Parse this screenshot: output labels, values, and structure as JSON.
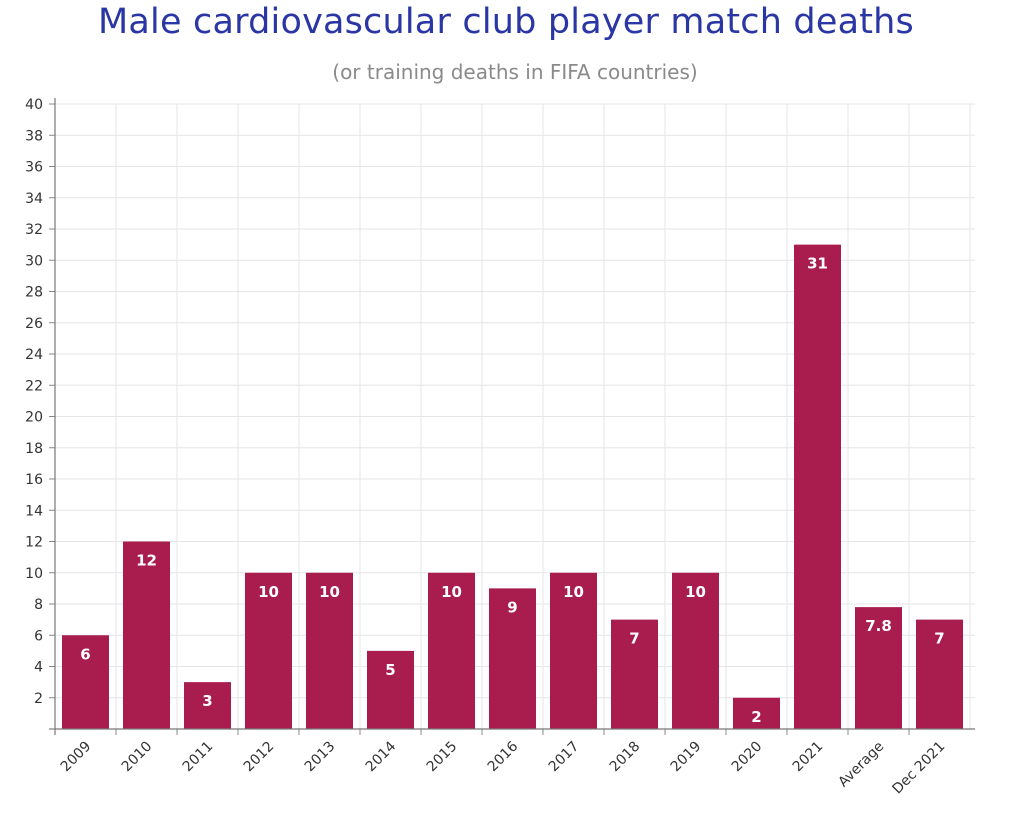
{
  "chart_data": {
    "type": "bar",
    "title": "Male cardiovascular club player match deaths",
    "subtitle": "(or training deaths in FIFA countries)",
    "categories": [
      "2009",
      "2010",
      "2011",
      "2012",
      "2013",
      "2014",
      "2015",
      "2016",
      "2017",
      "2018",
      "2019",
      "2020",
      "2021",
      "Average",
      "Dec 2021"
    ],
    "values": [
      6,
      12,
      3,
      10,
      10,
      5,
      10,
      9,
      10,
      7,
      10,
      2,
      31,
      7.8,
      7
    ],
    "data_labels": [
      "6",
      "12",
      "3",
      "10",
      "10",
      "5",
      "10",
      "9",
      "10",
      "7",
      "10",
      "2",
      "31",
      "7.8",
      "7"
    ],
    "ylim": [
      0,
      40
    ],
    "yticks": [
      2,
      4,
      6,
      8,
      10,
      12,
      14,
      16,
      18,
      20,
      22,
      24,
      26,
      28,
      30,
      32,
      34,
      36,
      38,
      40
    ],
    "xlabel": "",
    "ylabel": "",
    "grid": true,
    "legend": "none",
    "bar_color": "#a91d4e",
    "title_color": "#2a36a4",
    "subtitle_color": "#8a8a8a"
  }
}
